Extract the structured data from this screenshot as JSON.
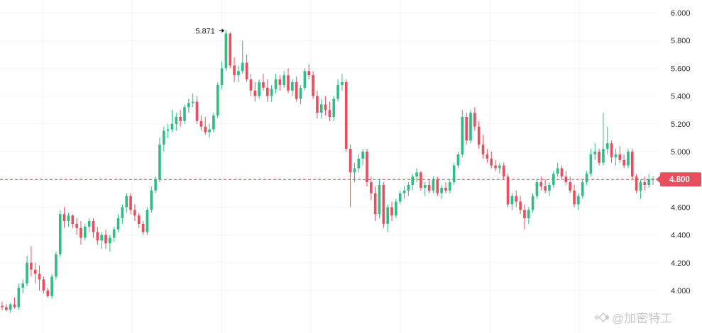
{
  "chart_data": {
    "type": "candlestick",
    "y_ticks": [
      "6.000",
      "5.800",
      "5.600",
      "5.400",
      "5.200",
      "5.000",
      "4.800",
      "4.600",
      "4.400",
      "4.200",
      "4.000"
    ],
    "ylim": [
      3.84,
      6.06
    ],
    "grid": true,
    "current_price": 4.8,
    "current_price_label": "4.800",
    "max_annotation": "5.871",
    "max_value": 5.871,
    "watermark": "@加密特工",
    "colors": {
      "up": "#2ebd85",
      "down": "#e84f5e",
      "grid": "#f2f3f5",
      "price_line": "#e84f5e"
    },
    "series": [
      [
        3.89,
        3.92,
        3.86,
        3.88
      ],
      [
        3.88,
        3.9,
        3.85,
        3.86
      ],
      [
        3.86,
        3.91,
        3.84,
        3.9
      ],
      [
        3.9,
        3.95,
        3.87,
        3.88
      ],
      [
        3.88,
        4.05,
        3.86,
        4.02
      ],
      [
        4.02,
        4.08,
        3.98,
        4.05
      ],
      [
        4.05,
        4.25,
        4.03,
        4.2
      ],
      [
        4.2,
        4.32,
        4.1,
        4.15
      ],
      [
        4.15,
        4.2,
        4.05,
        4.12
      ],
      [
        4.12,
        4.18,
        4.0,
        4.08
      ],
      [
        4.08,
        4.1,
        3.98,
        4.0
      ],
      [
        4.0,
        4.02,
        3.95,
        3.96
      ],
      [
        3.96,
        4.12,
        3.94,
        4.1
      ],
      [
        4.1,
        4.28,
        4.08,
        4.26
      ],
      [
        4.26,
        4.58,
        4.24,
        4.55
      ],
      [
        4.55,
        4.6,
        4.45,
        4.5
      ],
      [
        4.5,
        4.56,
        4.46,
        4.54
      ],
      [
        4.54,
        4.55,
        4.45,
        4.48
      ],
      [
        4.48,
        4.52,
        4.4,
        4.45
      ],
      [
        4.45,
        4.5,
        4.33,
        4.38
      ],
      [
        4.38,
        4.48,
        4.36,
        4.46
      ],
      [
        4.46,
        4.52,
        4.42,
        4.5
      ],
      [
        4.5,
        4.52,
        4.38,
        4.42
      ],
      [
        4.42,
        4.46,
        4.33,
        4.36
      ],
      [
        4.36,
        4.42,
        4.3,
        4.4
      ],
      [
        4.4,
        4.44,
        4.3,
        4.34
      ],
      [
        4.34,
        4.4,
        4.28,
        4.38
      ],
      [
        4.38,
        4.46,
        4.35,
        4.44
      ],
      [
        4.44,
        4.55,
        4.42,
        4.52
      ],
      [
        4.52,
        4.62,
        4.48,
        4.6
      ],
      [
        4.6,
        4.7,
        4.56,
        4.68
      ],
      [
        4.68,
        4.7,
        4.55,
        4.58
      ],
      [
        4.58,
        4.62,
        4.5,
        4.54
      ],
      [
        4.54,
        4.56,
        4.45,
        4.48
      ],
      [
        4.48,
        4.5,
        4.4,
        4.42
      ],
      [
        4.42,
        4.6,
        4.4,
        4.58
      ],
      [
        4.58,
        4.75,
        4.56,
        4.72
      ],
      [
        4.72,
        4.82,
        4.7,
        4.8
      ],
      [
        4.8,
        5.1,
        4.78,
        5.05
      ],
      [
        5.05,
        5.18,
        5.0,
        5.15
      ],
      [
        5.15,
        5.2,
        5.1,
        5.16
      ],
      [
        5.16,
        5.3,
        5.14,
        5.2
      ],
      [
        5.2,
        5.28,
        5.15,
        5.25
      ],
      [
        5.25,
        5.3,
        5.18,
        5.22
      ],
      [
        5.22,
        5.34,
        5.2,
        5.32
      ],
      [
        5.32,
        5.38,
        5.28,
        5.35
      ],
      [
        5.35,
        5.42,
        5.32,
        5.36
      ],
      [
        5.36,
        5.4,
        5.2,
        5.22
      ],
      [
        5.22,
        5.26,
        5.15,
        5.18
      ],
      [
        5.18,
        5.25,
        5.12,
        5.14
      ],
      [
        5.14,
        5.2,
        5.1,
        5.16
      ],
      [
        5.16,
        5.28,
        5.14,
        5.26
      ],
      [
        5.26,
        5.5,
        5.24,
        5.48
      ],
      [
        5.48,
        5.65,
        5.45,
        5.6
      ],
      [
        5.6,
        5.871,
        5.58,
        5.85
      ],
      [
        5.85,
        5.86,
        5.6,
        5.62
      ],
      [
        5.62,
        5.68,
        5.5,
        5.55
      ],
      [
        5.55,
        5.62,
        5.5,
        5.58
      ],
      [
        5.58,
        5.8,
        5.56,
        5.64
      ],
      [
        5.64,
        5.7,
        5.5,
        5.52
      ],
      [
        5.52,
        5.56,
        5.4,
        5.44
      ],
      [
        5.44,
        5.5,
        5.36,
        5.4
      ],
      [
        5.4,
        5.52,
        5.38,
        5.5
      ],
      [
        5.5,
        5.56,
        5.44,
        5.46
      ],
      [
        5.46,
        5.52,
        5.36,
        5.4
      ],
      [
        5.4,
        5.48,
        5.36,
        5.45
      ],
      [
        5.45,
        5.56,
        5.42,
        5.52
      ],
      [
        5.52,
        5.55,
        5.44,
        5.48
      ],
      [
        5.48,
        5.58,
        5.46,
        5.55
      ],
      [
        5.55,
        5.6,
        5.42,
        5.44
      ],
      [
        5.44,
        5.52,
        5.4,
        5.5
      ],
      [
        5.5,
        5.54,
        5.36,
        5.38
      ],
      [
        5.38,
        5.48,
        5.34,
        5.46
      ],
      [
        5.46,
        5.6,
        5.44,
        5.58
      ],
      [
        5.58,
        5.63,
        5.52,
        5.55
      ],
      [
        5.55,
        5.58,
        5.38,
        5.4
      ],
      [
        5.4,
        5.44,
        5.24,
        5.28
      ],
      [
        5.28,
        5.38,
        5.24,
        5.34
      ],
      [
        5.34,
        5.4,
        5.26,
        5.3
      ],
      [
        5.3,
        5.36,
        5.22,
        5.25
      ],
      [
        5.25,
        5.4,
        5.22,
        5.38
      ],
      [
        5.38,
        5.52,
        5.36,
        5.48
      ],
      [
        5.48,
        5.56,
        5.44,
        5.5
      ],
      [
        5.5,
        5.52,
        5.0,
        5.02
      ],
      [
        5.02,
        5.05,
        4.6,
        4.85
      ],
      [
        4.85,
        4.92,
        4.78,
        4.88
      ],
      [
        4.88,
        4.98,
        4.85,
        4.95
      ],
      [
        4.95,
        5.02,
        4.9,
        5.0
      ],
      [
        5.0,
        5.02,
        4.75,
        4.78
      ],
      [
        4.78,
        4.82,
        4.65,
        4.7
      ],
      [
        4.7,
        4.75,
        4.5,
        4.55
      ],
      [
        4.55,
        4.8,
        4.52,
        4.76
      ],
      [
        4.76,
        4.78,
        4.45,
        4.48
      ],
      [
        4.48,
        4.62,
        4.42,
        4.6
      ],
      [
        4.6,
        4.64,
        4.5,
        4.54
      ],
      [
        4.54,
        4.66,
        4.52,
        4.64
      ],
      [
        4.64,
        4.72,
        4.62,
        4.7
      ],
      [
        4.7,
        4.75,
        4.66,
        4.72
      ],
      [
        4.72,
        4.78,
        4.68,
        4.76
      ],
      [
        4.76,
        4.84,
        4.72,
        4.82
      ],
      [
        4.82,
        4.88,
        4.78,
        4.85
      ],
      [
        4.85,
        4.86,
        4.72,
        4.74
      ],
      [
        4.74,
        4.78,
        4.68,
        4.76
      ],
      [
        4.76,
        4.8,
        4.7,
        4.72
      ],
      [
        4.72,
        4.82,
        4.7,
        4.8
      ],
      [
        4.8,
        4.82,
        4.68,
        4.7
      ],
      [
        4.7,
        4.76,
        4.66,
        4.74
      ],
      [
        4.74,
        4.78,
        4.7,
        4.72
      ],
      [
        4.72,
        4.8,
        4.7,
        4.78
      ],
      [
        4.78,
        4.92,
        4.76,
        4.9
      ],
      [
        4.9,
        5.0,
        4.88,
        4.98
      ],
      [
        4.98,
        5.3,
        4.96,
        5.25
      ],
      [
        5.25,
        5.28,
        5.05,
        5.08
      ],
      [
        5.08,
        5.3,
        5.06,
        5.28
      ],
      [
        5.28,
        5.32,
        5.15,
        5.18
      ],
      [
        5.18,
        5.22,
        5.02,
        5.05
      ],
      [
        5.05,
        5.12,
        4.95,
        4.98
      ],
      [
        4.98,
        5.02,
        4.92,
        4.95
      ],
      [
        4.95,
        5.0,
        4.88,
        4.9
      ],
      [
        4.9,
        4.94,
        4.86,
        4.88
      ],
      [
        4.88,
        4.92,
        4.84,
        4.9
      ],
      [
        4.9,
        4.92,
        4.8,
        4.82
      ],
      [
        4.82,
        4.84,
        4.6,
        4.62
      ],
      [
        4.62,
        4.7,
        4.58,
        4.68
      ],
      [
        4.68,
        4.72,
        4.6,
        4.64
      ],
      [
        4.64,
        4.68,
        4.55,
        4.58
      ],
      [
        4.58,
        4.62,
        4.44,
        4.52
      ],
      [
        4.52,
        4.6,
        4.48,
        4.58
      ],
      [
        4.58,
        4.7,
        4.56,
        4.68
      ],
      [
        4.68,
        4.8,
        4.66,
        4.78
      ],
      [
        4.78,
        4.82,
        4.72,
        4.75
      ],
      [
        4.75,
        4.8,
        4.7,
        4.72
      ],
      [
        4.72,
        4.78,
        4.68,
        4.76
      ],
      [
        4.76,
        4.86,
        4.74,
        4.84
      ],
      [
        4.84,
        4.92,
        4.82,
        4.88
      ],
      [
        4.88,
        4.9,
        4.8,
        4.82
      ],
      [
        4.82,
        4.86,
        4.76,
        4.78
      ],
      [
        4.78,
        4.82,
        4.7,
        4.72
      ],
      [
        4.72,
        4.76,
        4.6,
        4.62
      ],
      [
        4.62,
        4.7,
        4.58,
        4.68
      ],
      [
        4.68,
        4.8,
        4.66,
        4.78
      ],
      [
        4.78,
        4.86,
        4.76,
        4.84
      ],
      [
        4.84,
        5.02,
        4.82,
        4.98
      ],
      [
        4.98,
        5.06,
        4.94,
        5.0
      ],
      [
        5.0,
        5.02,
        4.9,
        4.92
      ],
      [
        4.92,
        5.28,
        4.9,
        5.02
      ],
      [
        5.02,
        5.18,
        4.98,
        5.06
      ],
      [
        5.06,
        5.08,
        4.92,
        4.96
      ],
      [
        4.96,
        5.02,
        4.9,
        4.98
      ],
      [
        4.98,
        5.04,
        4.92,
        4.94
      ],
      [
        4.94,
        4.98,
        4.88,
        4.9
      ],
      [
        4.9,
        5.02,
        4.88,
        5.0
      ],
      [
        5.0,
        5.02,
        4.8,
        4.82
      ],
      [
        4.82,
        4.84,
        4.7,
        4.72
      ],
      [
        4.72,
        4.8,
        4.66,
        4.78
      ],
      [
        4.78,
        4.82,
        4.72,
        4.76
      ],
      [
        4.76,
        4.84,
        4.74,
        4.8
      ],
      [
        4.8,
        4.82,
        4.76,
        4.8
      ]
    ]
  }
}
